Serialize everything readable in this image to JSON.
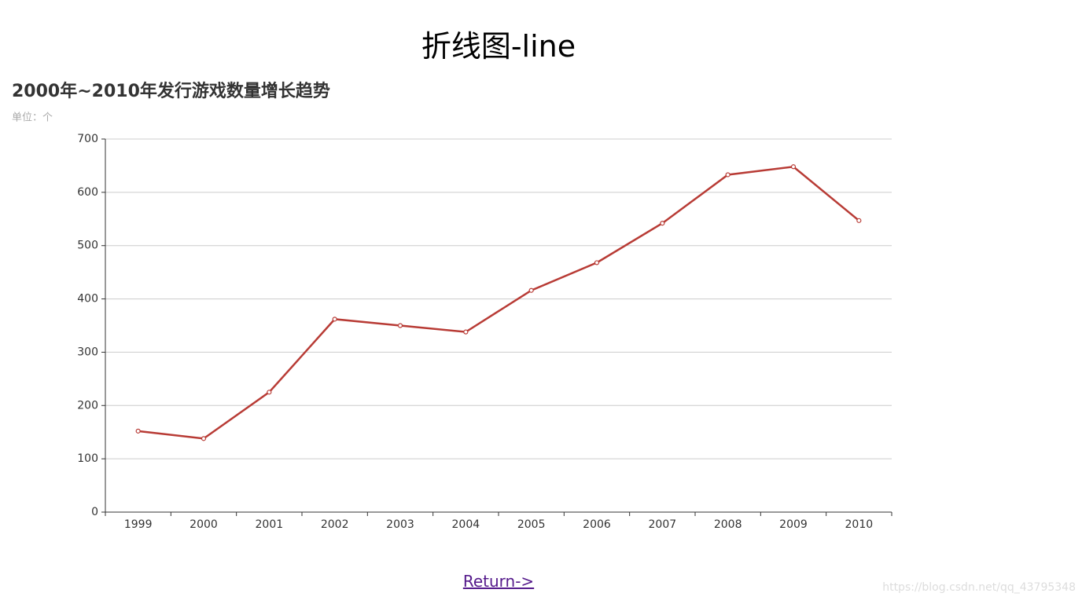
{
  "page": {
    "heading": "折线图-line",
    "return_link": "Return->",
    "watermark": "https://blog.csdn.net/qq_43795348"
  },
  "chart_data": {
    "type": "line",
    "title": "2000年~2010年发行游戏数量增长趋势",
    "subtitle": "单位：个",
    "categories": [
      "1999",
      "2000",
      "2001",
      "2002",
      "2003",
      "2004",
      "2005",
      "2006",
      "2007",
      "2008",
      "2009",
      "2010"
    ],
    "values": [
      152,
      138,
      225,
      362,
      350,
      338,
      416,
      468,
      542,
      633,
      648,
      547
    ],
    "color": "#b83b35",
    "ylim": [
      0,
      700
    ],
    "yticks": [
      0,
      100,
      200,
      300,
      400,
      500,
      600,
      700
    ],
    "grid": true
  }
}
